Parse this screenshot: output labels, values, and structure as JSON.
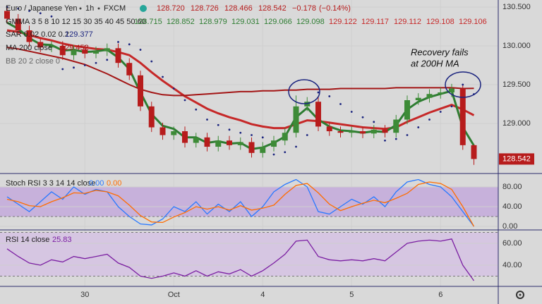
{
  "chart_data": [
    {
      "type": "candlestick",
      "title": "Euro / Japanese Yen",
      "interval": "1h",
      "source": "FXCM",
      "ohlc_legend": {
        "open": "128.720",
        "high": "128.726",
        "low": "128.466",
        "close": "128.542",
        "change": "−0.178",
        "change_pct": "(−0.14%)",
        "color": "#b71c1c"
      },
      "categories": [
        null,
        null,
        null,
        null,
        null,
        null,
        null,
        "30",
        null,
        null,
        null,
        null,
        null,
        null,
        null,
        "Oct",
        null,
        null,
        null,
        null,
        null,
        null,
        null,
        "4",
        null,
        null,
        null,
        null,
        null,
        null,
        null,
        "5",
        null,
        null,
        null,
        null,
        null,
        null,
        null,
        "6",
        null,
        null,
        null
      ],
      "open": [
        130.45,
        130.35,
        130.2,
        130.05,
        129.98,
        130.0,
        129.88,
        129.95,
        129.9,
        129.93,
        129.97,
        129.78,
        129.62,
        129.22,
        128.95,
        128.85,
        128.9,
        128.75,
        128.82,
        128.7,
        128.78,
        128.72,
        128.76,
        128.62,
        128.7,
        128.78,
        128.88,
        129.22,
        129.28,
        128.96,
        128.9,
        128.88,
        128.9,
        128.87,
        128.92,
        128.88,
        129.05,
        129.3,
        129.33,
        129.38,
        129.4,
        129.45,
        128.72
      ],
      "high": [
        130.51,
        130.41,
        130.26,
        130.11,
        130.06,
        130.06,
        130.01,
        130.01,
        129.99,
        130.03,
        130.03,
        129.84,
        129.68,
        129.28,
        129.01,
        128.96,
        128.96,
        128.88,
        128.88,
        128.84,
        128.84,
        128.82,
        128.82,
        128.76,
        128.84,
        128.94,
        129.36,
        129.34,
        129.34,
        129.02,
        128.96,
        128.96,
        128.96,
        128.98,
        128.98,
        129.11,
        129.36,
        129.39,
        129.44,
        129.46,
        129.51,
        129.5,
        128.726
      ],
      "low": [
        130.29,
        130.14,
        129.99,
        129.92,
        129.92,
        129.82,
        129.82,
        129.84,
        129.84,
        129.87,
        129.72,
        129.56,
        129.16,
        128.89,
        128.79,
        128.79,
        128.69,
        128.69,
        128.64,
        128.64,
        128.66,
        128.66,
        128.56,
        128.56,
        128.64,
        128.72,
        128.82,
        129.16,
        128.9,
        128.84,
        128.82,
        128.82,
        128.81,
        128.81,
        128.82,
        128.82,
        128.99,
        129.24,
        129.27,
        129.32,
        129.34,
        128.66,
        128.466
      ],
      "close": [
        130.35,
        130.2,
        130.05,
        129.98,
        130.0,
        129.88,
        129.95,
        129.9,
        129.93,
        129.97,
        129.78,
        129.62,
        129.22,
        128.95,
        128.85,
        128.9,
        128.75,
        128.82,
        128.7,
        128.78,
        128.72,
        128.76,
        128.62,
        128.7,
        128.78,
        128.88,
        129.22,
        129.28,
        128.96,
        128.9,
        128.88,
        128.9,
        128.87,
        128.92,
        128.88,
        129.05,
        129.3,
        129.33,
        129.38,
        129.4,
        129.45,
        128.72,
        128.542
      ],
      "up_color": "#3d8b37",
      "down_color": "#b71c1c",
      "gmma": {
        "label": "GMMA 3 5 8 10 12 15 30 35 40 45 50 60",
        "short_last": [
          128.715,
          128.852,
          128.979,
          129.031,
          129.066,
          129.098
        ],
        "long_last": [
          129.122,
          129.117,
          129.112,
          129.108,
          129.106
        ],
        "short_color": "#2e7d32",
        "long_color": "#c62828",
        "short": [
          130.3,
          130.22,
          130.1,
          130.02,
          130.01,
          129.94,
          129.95,
          129.92,
          129.93,
          129.95,
          129.85,
          129.7,
          129.4,
          129.12,
          128.97,
          128.93,
          128.82,
          128.82,
          128.75,
          128.77,
          128.74,
          128.75,
          128.67,
          128.69,
          128.75,
          128.83,
          129.08,
          129.2,
          129.05,
          128.96,
          128.91,
          128.9,
          128.88,
          128.9,
          128.89,
          128.98,
          129.18,
          129.28,
          129.34,
          129.38,
          129.42,
          128.95,
          128.715
        ],
        "long": [
          130.2,
          130.18,
          130.14,
          130.1,
          130.07,
          130.03,
          130.0,
          129.98,
          129.96,
          129.95,
          129.92,
          129.88,
          129.78,
          129.66,
          129.55,
          129.45,
          129.35,
          129.27,
          129.19,
          129.13,
          129.08,
          129.04,
          128.99,
          128.96,
          128.94,
          128.94,
          128.99,
          129.04,
          129.03,
          129.01,
          128.99,
          128.97,
          128.95,
          128.94,
          128.93,
          128.95,
          129.02,
          129.08,
          129.14,
          129.19,
          129.24,
          129.18,
          129.106
        ]
      },
      "sar": {
        "label": "SAR 0.02 0.02 0.2",
        "color": "#1a237e",
        "values": [
          130.5,
          130.48,
          130.45,
          130.42,
          130.38,
          129.7,
          129.72,
          129.75,
          129.78,
          129.82,
          130.05,
          130.02,
          129.95,
          129.8,
          129.6,
          129.45,
          129.3,
          129.18,
          129.05,
          128.98,
          128.92,
          128.88,
          128.85,
          128.82,
          128.6,
          128.63,
          128.7,
          128.85,
          129.4,
          129.35,
          129.25,
          129.15,
          129.08,
          129.02,
          128.78,
          128.8,
          128.85,
          128.95,
          129.05,
          129.15,
          129.22,
          129.5,
          129.377
        ]
      },
      "ma200": {
        "label": "MA 200 close",
        "color": "#a31515",
        "values": [
          129.98,
          129.96,
          129.93,
          129.9,
          129.87,
          129.84,
          129.8,
          129.76,
          129.7,
          129.64,
          129.57,
          129.5,
          129.44,
          129.4,
          129.37,
          129.36,
          129.36,
          129.37,
          129.38,
          129.39,
          129.4,
          129.41,
          129.41,
          129.42,
          129.42,
          129.43,
          129.43,
          129.44,
          129.44,
          129.44,
          129.45,
          129.45,
          129.45,
          129.45,
          129.45,
          129.46,
          129.46,
          129.46,
          129.46,
          129.46,
          129.46,
          129.45,
          129.452
        ]
      },
      "bb": {
        "label": "BB 20 2 close 0"
      },
      "annotation": [
        "Recovery fails",
        "at 200H MA"
      ],
      "ylim": [
        128.364,
        130.591
      ],
      "yticks": [
        {
          "value": 130.5,
          "label": "130.500"
        },
        {
          "value": 130,
          "label": "130.000"
        },
        {
          "value": 129.5,
          "label": "129.500"
        },
        {
          "value": 129,
          "label": "129.000"
        }
      ],
      "grid": true
    },
    {
      "type": "line",
      "label": "Stoch RSI 3 3 14 14 close",
      "legend_values": [
        "0.00",
        "0.00"
      ],
      "series": [
        {
          "color": "#2979ff",
          "values": [
            60,
            45,
            30,
            50,
            70,
            55,
            80,
            65,
            75,
            70,
            40,
            20,
            5,
            3,
            15,
            40,
            30,
            50,
            25,
            45,
            30,
            50,
            20,
            40,
            70,
            85,
            95,
            80,
            30,
            25,
            40,
            55,
            45,
            60,
            40,
            70,
            90,
            95,
            85,
            80,
            60,
            30,
            0
          ]
        },
        {
          "color": "#ff6d00",
          "values": [
            55,
            50,
            42,
            40,
            50,
            58,
            68,
            67,
            73,
            70,
            62,
            43,
            22,
            9,
            8,
            19,
            28,
            40,
            35,
            40,
            33,
            42,
            33,
            37,
            43,
            65,
            83,
            87,
            68,
            45,
            32,
            40,
            47,
            53,
            48,
            57,
            67,
            85,
            90,
            87,
            75,
            40,
            0
          ]
        }
      ],
      "band": [
        20,
        80
      ],
      "band_color": "#c7b1db",
      "ylim": [
        -5.7,
        104.3
      ],
      "yticks": [
        {
          "value": 80,
          "label": "80.00"
        },
        {
          "value": 40,
          "label": "40.00"
        },
        {
          "value": 0,
          "label": "0.00"
        }
      ],
      "grid": true
    },
    {
      "type": "line",
      "label": "RSI 14 close",
      "series": [
        {
          "color": "#7b1fa2",
          "values": [
            55,
            48,
            42,
            40,
            45,
            43,
            48,
            46,
            48,
            50,
            42,
            38,
            30,
            28,
            30,
            33,
            30,
            35,
            30,
            34,
            32,
            36,
            30,
            35,
            42,
            50,
            62,
            63,
            48,
            45,
            44,
            45,
            44,
            46,
            44,
            52,
            60,
            62,
            63,
            62,
            64,
            40,
            25.83
          ]
        }
      ],
      "band": [
        30,
        70
      ],
      "band_color": "#d6c6e2",
      "ylim": [
        21.3,
        71
      ],
      "yticks": [
        {
          "value": 60,
          "label": "60.00"
        },
        {
          "value": 40,
          "label": "40.00"
        }
      ],
      "grid": true
    }
  ]
}
